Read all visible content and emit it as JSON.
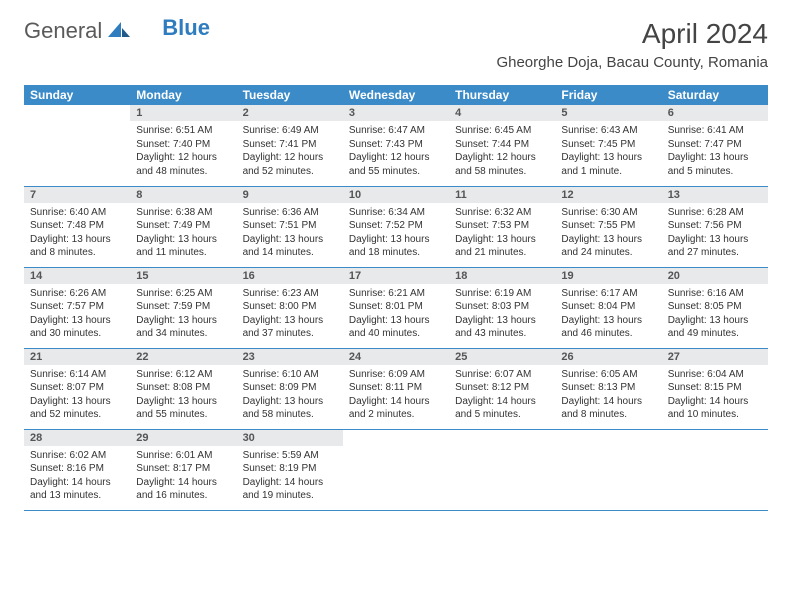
{
  "brand": {
    "part1": "General",
    "part2": "Blue"
  },
  "title": "April 2024",
  "subtitle": "Gheorghe Doja, Bacau County, Romania",
  "dayHeaders": [
    "Sunday",
    "Monday",
    "Tuesday",
    "Wednesday",
    "Thursday",
    "Friday",
    "Saturday"
  ],
  "colors": {
    "header_bg": "#3b8bc9",
    "header_text": "#ffffff",
    "daynum_bg": "#e7e9eb",
    "border": "#3b8bc9",
    "text": "#333333",
    "page_bg": "#ffffff"
  },
  "weeks": [
    [
      {
        "num": "",
        "sunrise": "",
        "sunset": "",
        "daylight": ""
      },
      {
        "num": "1",
        "sunrise": "Sunrise: 6:51 AM",
        "sunset": "Sunset: 7:40 PM",
        "daylight": "Daylight: 12 hours and 48 minutes."
      },
      {
        "num": "2",
        "sunrise": "Sunrise: 6:49 AM",
        "sunset": "Sunset: 7:41 PM",
        "daylight": "Daylight: 12 hours and 52 minutes."
      },
      {
        "num": "3",
        "sunrise": "Sunrise: 6:47 AM",
        "sunset": "Sunset: 7:43 PM",
        "daylight": "Daylight: 12 hours and 55 minutes."
      },
      {
        "num": "4",
        "sunrise": "Sunrise: 6:45 AM",
        "sunset": "Sunset: 7:44 PM",
        "daylight": "Daylight: 12 hours and 58 minutes."
      },
      {
        "num": "5",
        "sunrise": "Sunrise: 6:43 AM",
        "sunset": "Sunset: 7:45 PM",
        "daylight": "Daylight: 13 hours and 1 minute."
      },
      {
        "num": "6",
        "sunrise": "Sunrise: 6:41 AM",
        "sunset": "Sunset: 7:47 PM",
        "daylight": "Daylight: 13 hours and 5 minutes."
      }
    ],
    [
      {
        "num": "7",
        "sunrise": "Sunrise: 6:40 AM",
        "sunset": "Sunset: 7:48 PM",
        "daylight": "Daylight: 13 hours and 8 minutes."
      },
      {
        "num": "8",
        "sunrise": "Sunrise: 6:38 AM",
        "sunset": "Sunset: 7:49 PM",
        "daylight": "Daylight: 13 hours and 11 minutes."
      },
      {
        "num": "9",
        "sunrise": "Sunrise: 6:36 AM",
        "sunset": "Sunset: 7:51 PM",
        "daylight": "Daylight: 13 hours and 14 minutes."
      },
      {
        "num": "10",
        "sunrise": "Sunrise: 6:34 AM",
        "sunset": "Sunset: 7:52 PM",
        "daylight": "Daylight: 13 hours and 18 minutes."
      },
      {
        "num": "11",
        "sunrise": "Sunrise: 6:32 AM",
        "sunset": "Sunset: 7:53 PM",
        "daylight": "Daylight: 13 hours and 21 minutes."
      },
      {
        "num": "12",
        "sunrise": "Sunrise: 6:30 AM",
        "sunset": "Sunset: 7:55 PM",
        "daylight": "Daylight: 13 hours and 24 minutes."
      },
      {
        "num": "13",
        "sunrise": "Sunrise: 6:28 AM",
        "sunset": "Sunset: 7:56 PM",
        "daylight": "Daylight: 13 hours and 27 minutes."
      }
    ],
    [
      {
        "num": "14",
        "sunrise": "Sunrise: 6:26 AM",
        "sunset": "Sunset: 7:57 PM",
        "daylight": "Daylight: 13 hours and 30 minutes."
      },
      {
        "num": "15",
        "sunrise": "Sunrise: 6:25 AM",
        "sunset": "Sunset: 7:59 PM",
        "daylight": "Daylight: 13 hours and 34 minutes."
      },
      {
        "num": "16",
        "sunrise": "Sunrise: 6:23 AM",
        "sunset": "Sunset: 8:00 PM",
        "daylight": "Daylight: 13 hours and 37 minutes."
      },
      {
        "num": "17",
        "sunrise": "Sunrise: 6:21 AM",
        "sunset": "Sunset: 8:01 PM",
        "daylight": "Daylight: 13 hours and 40 minutes."
      },
      {
        "num": "18",
        "sunrise": "Sunrise: 6:19 AM",
        "sunset": "Sunset: 8:03 PM",
        "daylight": "Daylight: 13 hours and 43 minutes."
      },
      {
        "num": "19",
        "sunrise": "Sunrise: 6:17 AM",
        "sunset": "Sunset: 8:04 PM",
        "daylight": "Daylight: 13 hours and 46 minutes."
      },
      {
        "num": "20",
        "sunrise": "Sunrise: 6:16 AM",
        "sunset": "Sunset: 8:05 PM",
        "daylight": "Daylight: 13 hours and 49 minutes."
      }
    ],
    [
      {
        "num": "21",
        "sunrise": "Sunrise: 6:14 AM",
        "sunset": "Sunset: 8:07 PM",
        "daylight": "Daylight: 13 hours and 52 minutes."
      },
      {
        "num": "22",
        "sunrise": "Sunrise: 6:12 AM",
        "sunset": "Sunset: 8:08 PM",
        "daylight": "Daylight: 13 hours and 55 minutes."
      },
      {
        "num": "23",
        "sunrise": "Sunrise: 6:10 AM",
        "sunset": "Sunset: 8:09 PM",
        "daylight": "Daylight: 13 hours and 58 minutes."
      },
      {
        "num": "24",
        "sunrise": "Sunrise: 6:09 AM",
        "sunset": "Sunset: 8:11 PM",
        "daylight": "Daylight: 14 hours and 2 minutes."
      },
      {
        "num": "25",
        "sunrise": "Sunrise: 6:07 AM",
        "sunset": "Sunset: 8:12 PM",
        "daylight": "Daylight: 14 hours and 5 minutes."
      },
      {
        "num": "26",
        "sunrise": "Sunrise: 6:05 AM",
        "sunset": "Sunset: 8:13 PM",
        "daylight": "Daylight: 14 hours and 8 minutes."
      },
      {
        "num": "27",
        "sunrise": "Sunrise: 6:04 AM",
        "sunset": "Sunset: 8:15 PM",
        "daylight": "Daylight: 14 hours and 10 minutes."
      }
    ],
    [
      {
        "num": "28",
        "sunrise": "Sunrise: 6:02 AM",
        "sunset": "Sunset: 8:16 PM",
        "daylight": "Daylight: 14 hours and 13 minutes."
      },
      {
        "num": "29",
        "sunrise": "Sunrise: 6:01 AM",
        "sunset": "Sunset: 8:17 PM",
        "daylight": "Daylight: 14 hours and 16 minutes."
      },
      {
        "num": "30",
        "sunrise": "Sunrise: 5:59 AM",
        "sunset": "Sunset: 8:19 PM",
        "daylight": "Daylight: 14 hours and 19 minutes."
      },
      {
        "num": "",
        "sunrise": "",
        "sunset": "",
        "daylight": ""
      },
      {
        "num": "",
        "sunrise": "",
        "sunset": "",
        "daylight": ""
      },
      {
        "num": "",
        "sunrise": "",
        "sunset": "",
        "daylight": ""
      },
      {
        "num": "",
        "sunrise": "",
        "sunset": "",
        "daylight": ""
      }
    ]
  ]
}
